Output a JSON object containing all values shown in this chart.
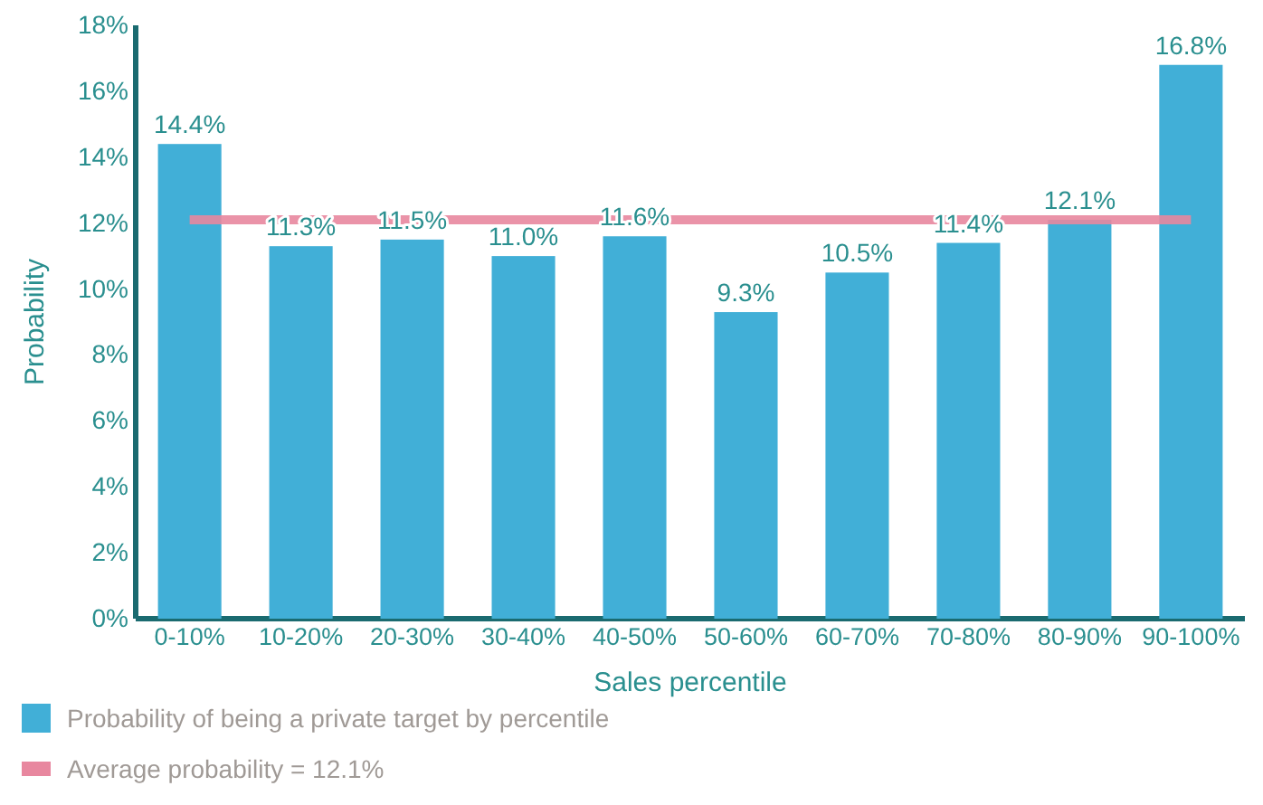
{
  "chart_data": {
    "type": "bar",
    "xlabel": "Sales percentile",
    "ylabel": "Probability",
    "categories": [
      "0-10%",
      "10-20%",
      "20-30%",
      "30-40%",
      "40-50%",
      "50-60%",
      "60-70%",
      "70-80%",
      "80-90%",
      "90-100%"
    ],
    "series": [
      {
        "name": "Probability of being a private target by percentile",
        "color": "#41afd7",
        "values": [
          14.4,
          11.3,
          11.5,
          11.0,
          11.6,
          9.3,
          10.5,
          11.4,
          12.1,
          16.8
        ],
        "value_labels": [
          "14.4%",
          "11.3%",
          "11.5%",
          "11.0%",
          "11.6%",
          "9.3%",
          "10.5%",
          "11.4%",
          "12.1%",
          "16.8%"
        ]
      }
    ],
    "ylim": [
      0,
      18
    ],
    "yticks": [
      {
        "value": 0,
        "label": "0%"
      },
      {
        "value": 2,
        "label": "2%"
      },
      {
        "value": 4,
        "label": "4%"
      },
      {
        "value": 6,
        "label": "6%"
      },
      {
        "value": 8,
        "label": "8%"
      },
      {
        "value": 10,
        "label": "10%"
      },
      {
        "value": 12,
        "label": "12%"
      },
      {
        "value": 14,
        "label": "14%"
      },
      {
        "value": 16,
        "label": "16%"
      },
      {
        "value": 18,
        "label": "18%"
      }
    ],
    "ref_lines": [
      {
        "axis": "y",
        "value": 12.1,
        "label": "Average probability = 12.1%",
        "color": "#e8879f"
      }
    ],
    "legend": "bottom",
    "grid": false
  }
}
